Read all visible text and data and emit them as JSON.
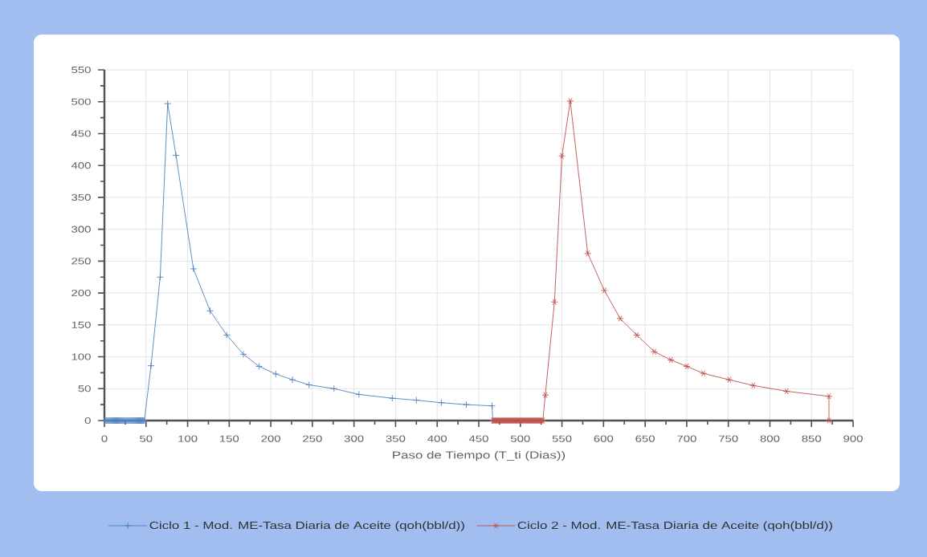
{
  "chart_data": {
    "type": "line",
    "xlabel": "Paso de Tiempo (T_ti (Dias))",
    "xlim": [
      0,
      900
    ],
    "xticks": [
      0,
      {
        "value": 25,
        "label": null
      },
      50,
      {
        "value": 75,
        "label": null
      },
      100,
      {
        "value": 125,
        "label": null
      },
      150,
      {
        "value": 175,
        "label": null
      },
      200,
      {
        "value": 225,
        "label": null
      },
      250,
      {
        "value": 275,
        "label": null
      },
      300,
      {
        "value": 325,
        "label": null
      },
      350,
      {
        "value": 375,
        "label": null
      },
      400,
      {
        "value": 425,
        "label": null
      },
      450,
      {
        "value": 475,
        "label": null
      },
      500,
      {
        "value": 525,
        "label": null
      },
      550,
      {
        "value": 575,
        "label": null
      },
      600,
      {
        "value": 625,
        "label": null
      },
      650,
      {
        "value": 675,
        "label": null
      },
      700,
      {
        "value": 725,
        "label": null
      },
      750,
      {
        "value": 775,
        "label": null
      },
      800,
      {
        "value": 825,
        "label": null
      },
      850,
      {
        "value": 875,
        "label": null
      },
      900
    ],
    "ylim": [
      0,
      550
    ],
    "yticks": [
      0,
      {
        "value": 25,
        "label": null
      },
      50,
      {
        "value": 75,
        "label": null
      },
      100,
      {
        "value": 125,
        "label": null
      },
      150,
      {
        "value": 175,
        "label": null
      },
      200,
      {
        "value": 225,
        "label": null
      },
      250,
      {
        "value": 275,
        "label": null
      },
      300,
      {
        "value": 325,
        "label": null
      },
      350,
      {
        "value": 375,
        "label": null
      },
      400,
      {
        "value": 425,
        "label": null
      },
      450,
      {
        "value": 475,
        "label": null
      },
      500,
      {
        "value": 525,
        "label": null
      },
      550
    ],
    "grid": true,
    "legend": "bottom",
    "series": [
      {
        "name": "Ciclo 1 - Mod. ME-Tasa Diaria de Aceite (qoh(bbl/d))",
        "color": "#4f81bd",
        "marker": "cross",
        "x": [
          0,
          1,
          2,
          3,
          4,
          5,
          6,
          7,
          8,
          9,
          10,
          11,
          12,
          13,
          14,
          15,
          16,
          17,
          18,
          19,
          20,
          21,
          22,
          23,
          24,
          25,
          26,
          27,
          28,
          29,
          30,
          31,
          32,
          33,
          34,
          35,
          36,
          37,
          38,
          39,
          40,
          41,
          42,
          43,
          44,
          45,
          46,
          47,
          48,
          56,
          67,
          76,
          86,
          107,
          127,
          147,
          167,
          186,
          206,
          226,
          246,
          276,
          306,
          346,
          375,
          405,
          435,
          466,
          467
        ],
        "values": [
          0,
          0,
          0,
          0,
          0,
          0,
          0,
          0,
          0,
          0,
          0,
          0,
          0,
          0,
          0,
          0,
          0,
          0,
          0,
          0,
          0,
          0,
          0,
          0,
          0,
          0,
          0,
          0,
          0,
          0,
          0,
          0,
          0,
          0,
          0,
          0,
          0,
          0,
          0,
          0,
          0,
          0,
          0,
          0,
          0,
          0,
          0,
          0,
          0,
          86,
          225,
          497,
          416,
          238,
          172,
          134,
          104,
          85,
          73,
          64,
          56,
          50,
          41,
          35,
          32,
          28,
          25,
          23,
          0
        ]
      },
      {
        "name": "Ciclo 2 - Mod. ME-Tasa Diaria de Aceite (qoh(bbl/d))",
        "color": "#c0504d",
        "marker": "cross",
        "x": [
          467,
          468,
          469,
          470,
          471,
          472,
          473,
          474,
          475,
          476,
          477,
          478,
          479,
          480,
          481,
          482,
          483,
          484,
          485,
          486,
          487,
          488,
          489,
          490,
          491,
          492,
          493,
          494,
          495,
          496,
          497,
          498,
          499,
          500,
          501,
          502,
          503,
          504,
          505,
          506,
          507,
          508,
          509,
          510,
          511,
          512,
          513,
          514,
          515,
          516,
          517,
          518,
          519,
          520,
          521,
          522,
          523,
          524,
          525,
          526,
          527,
          530,
          541,
          550,
          560,
          581,
          601,
          620,
          640,
          661,
          681,
          700,
          720,
          751,
          780,
          820,
          871,
          871
        ],
        "values": [
          0,
          0,
          0,
          0,
          0,
          0,
          0,
          0,
          0,
          0,
          0,
          0,
          0,
          0,
          0,
          0,
          0,
          0,
          0,
          0,
          0,
          0,
          0,
          0,
          0,
          0,
          0,
          0,
          0,
          0,
          0,
          0,
          0,
          0,
          0,
          0,
          0,
          0,
          0,
          0,
          0,
          0,
          0,
          0,
          0,
          0,
          0,
          0,
          0,
          0,
          0,
          0,
          0,
          0,
          0,
          0,
          0,
          0,
          0,
          0,
          0,
          40,
          186,
          415,
          501,
          262,
          204,
          160,
          134,
          108,
          95,
          85,
          74,
          64,
          55,
          46,
          38,
          0
        ]
      }
    ]
  }
}
